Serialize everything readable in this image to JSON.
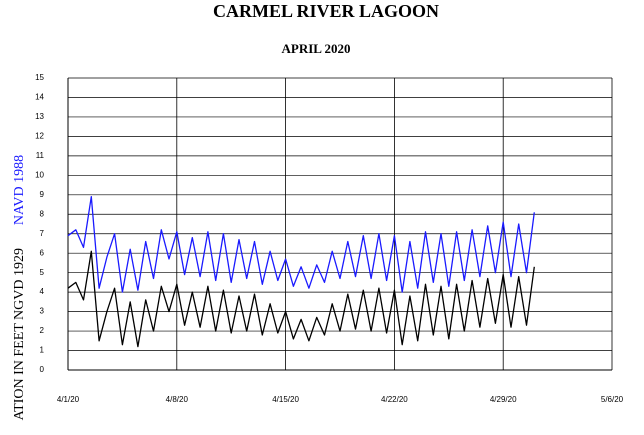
{
  "chart_data": {
    "type": "line",
    "title": "CARMEL RIVER LAGOON",
    "subtitle": "APRIL 2020",
    "y_label_top": "NAVD 1988",
    "y_label_bottom": "ATION IN FEET  NGVD 1929",
    "x": [
      0,
      0.5,
      1,
      1.5,
      2,
      2.5,
      3,
      3.5,
      4,
      4.5,
      5,
      5.5,
      6,
      6.5,
      7,
      7.5,
      8,
      8.5,
      9,
      9.5,
      10,
      10.5,
      11,
      11.5,
      12,
      12.5,
      13,
      13.5,
      14,
      14.5,
      15,
      15.5,
      16,
      16.5,
      17,
      17.5,
      18,
      18.5,
      19,
      19.5,
      20,
      20.5,
      21,
      21.5,
      22,
      22.5,
      23,
      23.5,
      24,
      24.5,
      25,
      25.5,
      26,
      26.5,
      27,
      27.5,
      28,
      28.5,
      29,
      29.5,
      30
    ],
    "series": [
      {
        "color": "#1a1aff",
        "values": [
          6.9,
          7.2,
          6.3,
          8.9,
          4.2,
          5.8,
          7.0,
          4.0,
          6.2,
          4.1,
          6.6,
          4.7,
          7.2,
          5.7,
          7.1,
          4.9,
          6.8,
          4.8,
          7.1,
          4.6,
          7.0,
          4.5,
          6.7,
          4.7,
          6.6,
          4.4,
          6.1,
          4.6,
          5.7,
          4.3,
          5.3,
          4.2,
          5.4,
          4.5,
          6.1,
          4.7,
          6.6,
          4.8,
          6.9,
          4.7,
          7.0,
          4.6,
          6.9,
          4.0,
          6.6,
          4.2,
          7.1,
          4.5,
          7.0,
          4.3,
          7.1,
          4.6,
          7.2,
          4.8,
          7.4,
          5.0,
          7.6,
          4.8,
          7.5,
          5.0,
          8.1
        ]
      },
      {
        "color": "#000000",
        "values": [
          4.2,
          4.5,
          3.6,
          6.1,
          1.5,
          3.0,
          4.2,
          1.3,
          3.5,
          1.2,
          3.6,
          2.0,
          4.3,
          3.0,
          4.4,
          2.3,
          4.0,
          2.2,
          4.3,
          2.0,
          4.1,
          1.9,
          3.8,
          2.0,
          3.9,
          1.8,
          3.4,
          1.9,
          3.0,
          1.6,
          2.6,
          1.5,
          2.7,
          1.8,
          3.4,
          2.0,
          3.9,
          2.1,
          4.1,
          2.0,
          4.2,
          1.9,
          4.1,
          1.3,
          3.8,
          1.5,
          4.4,
          1.8,
          4.3,
          1.6,
          4.4,
          2.0,
          4.6,
          2.2,
          4.7,
          2.4,
          4.9,
          2.2,
          4.8,
          2.3,
          5.3
        ]
      }
    ],
    "xlim": [
      0,
      35
    ],
    "xticks": [
      {
        "value": 0,
        "label": "4/1/20"
      },
      {
        "value": 7,
        "label": "4/8/20"
      },
      {
        "value": 14,
        "label": "4/15/20"
      },
      {
        "value": 21,
        "label": "4/22/20"
      },
      {
        "value": 28,
        "label": "4/29/20"
      },
      {
        "value": 35,
        "label": "5/6/20"
      }
    ],
    "ylim": [
      0,
      15
    ],
    "yticks": [
      0,
      1,
      2,
      3,
      4,
      5,
      6,
      7,
      8,
      9,
      10,
      11,
      12,
      13,
      14,
      15
    ],
    "grid": true
  }
}
